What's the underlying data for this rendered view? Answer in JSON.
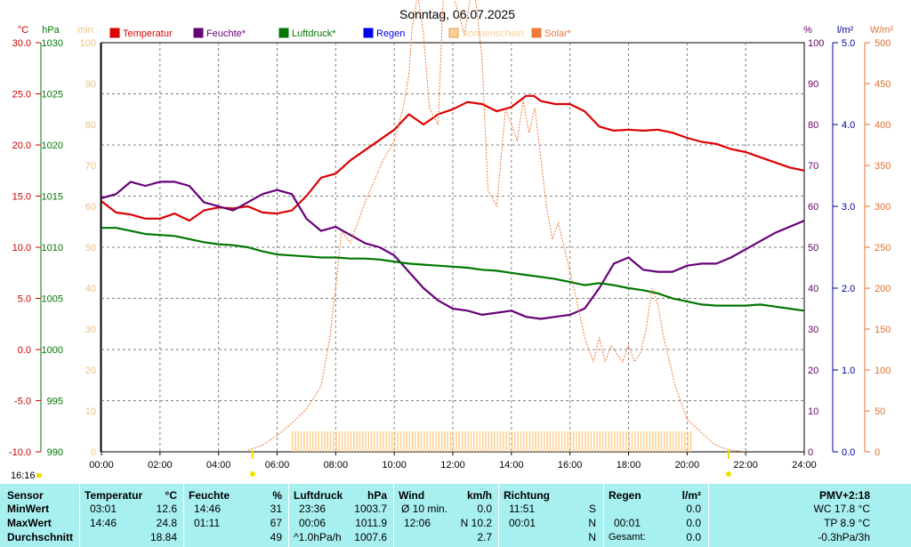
{
  "chart_data": {
    "type": "line",
    "title": "Sonntag, 06.07.2025",
    "x_ticks": [
      "00:00",
      "02:00",
      "04:00",
      "06:00",
      "08:00",
      "10:00",
      "12:00",
      "14:00",
      "16:00",
      "18:00",
      "20:00",
      "22:00",
      "24:00"
    ],
    "x_range_hours": [
      0,
      24
    ],
    "grid": true,
    "legend_position": "top",
    "sunrise_label": "16:16",
    "axes": {
      "temp": {
        "unit": "°C",
        "range": [
          -10,
          30
        ],
        "ticks": [
          "30.0",
          "25.0",
          "20.0",
          "15.0",
          "10.0",
          "5.0",
          "0.0",
          "-5.0",
          "-10.0"
        ],
        "color": "#cc0000"
      },
      "pressure": {
        "unit": "hPa",
        "range": [
          990,
          1030
        ],
        "ticks": [
          "1030",
          "1025",
          "1020",
          "1015",
          "1010",
          "1005",
          "1000",
          "995",
          "990"
        ],
        "color": "#007700"
      },
      "sunshine": {
        "unit": "min",
        "range": [
          0,
          100
        ],
        "ticks": [
          "100",
          "90",
          "80",
          "70",
          "60",
          "50",
          "40",
          "30",
          "20",
          "10",
          "0"
        ],
        "color": "#f0c080"
      },
      "humidity": {
        "unit": "%",
        "range": [
          0,
          100
        ],
        "ticks": [
          "100",
          "90",
          "80",
          "70",
          "60",
          "50",
          "40",
          "30",
          "20",
          "10",
          "0"
        ],
        "color": "#660066"
      },
      "rain": {
        "unit": "l/m²",
        "range": [
          0,
          5
        ],
        "ticks": [
          "5.0",
          "4.0",
          "3.0",
          "2.0",
          "1.0",
          "0.0"
        ],
        "color": "#000099"
      },
      "solar": {
        "unit": "W/m²",
        "range": [
          0,
          500
        ],
        "ticks": [
          "500",
          "450",
          "400",
          "350",
          "300",
          "250",
          "200",
          "150",
          "100",
          "50",
          "0"
        ],
        "color": "#e07030"
      }
    },
    "series": [
      {
        "name": "Temperatur",
        "color": "#dd0000",
        "axis": "temp",
        "x": [
          0,
          0.5,
          1,
          1.5,
          2,
          2.5,
          3,
          3.5,
          4,
          4.5,
          5,
          5.5,
          6,
          6.5,
          7,
          7.5,
          8,
          8.5,
          9,
          9.5,
          10,
          10.5,
          11,
          11.5,
          12,
          12.5,
          13,
          13.5,
          14,
          14.5,
          14.77,
          15,
          15.5,
          16,
          16.5,
          17,
          17.5,
          18,
          18.5,
          19,
          19.5,
          20,
          20.5,
          21,
          21.5,
          22,
          22.5,
          23,
          23.5,
          24
        ],
        "y": [
          14.5,
          13.4,
          13.2,
          12.8,
          12.8,
          13.3,
          12.6,
          13.6,
          13.9,
          13.8,
          14.0,
          13.4,
          13.3,
          13.6,
          15.0,
          16.8,
          17.2,
          18.5,
          19.5,
          20.5,
          21.5,
          23.0,
          22.0,
          23.0,
          23.5,
          24.2,
          24.0,
          23.3,
          23.7,
          24.8,
          24.8,
          24.3,
          24.0,
          24.0,
          23.3,
          21.8,
          21.4,
          21.5,
          21.4,
          21.5,
          21.2,
          20.7,
          20.3,
          20.1,
          19.6,
          19.3,
          18.8,
          18.3,
          17.8,
          17.5
        ]
      },
      {
        "name": "Feuchte*",
        "color": "#660077",
        "axis": "humidity",
        "x": [
          0,
          0.5,
          1,
          1.5,
          2,
          2.5,
          3,
          3.5,
          4,
          4.5,
          5,
          5.5,
          6,
          6.5,
          7,
          7.5,
          8,
          8.5,
          9,
          9.5,
          10,
          10.5,
          11,
          11.5,
          12,
          12.5,
          13,
          13.5,
          14,
          14.5,
          15,
          15.5,
          16,
          16.5,
          17,
          17.5,
          18,
          18.5,
          19,
          19.5,
          20,
          20.5,
          21,
          21.5,
          22,
          22.5,
          23,
          23.5,
          24
        ],
        "y": [
          62,
          63,
          66,
          65,
          66,
          66,
          65,
          61,
          60,
          59,
          61,
          63,
          64,
          63,
          57,
          54,
          55,
          53,
          51,
          50,
          48,
          44,
          40,
          37,
          35,
          34.5,
          33.5,
          34,
          34.5,
          33,
          32.5,
          33,
          33.5,
          35,
          40,
          46,
          47.5,
          44.5,
          44,
          44,
          45.5,
          46,
          46,
          47.5,
          49.5,
          51.5,
          53.5,
          55,
          56.5
        ]
      },
      {
        "name": "Luftdruck*",
        "color": "#007700",
        "axis": "pressure",
        "x": [
          0,
          0.5,
          1,
          1.5,
          2,
          2.5,
          3,
          3.5,
          4,
          4.5,
          5,
          5.5,
          6,
          6.5,
          7,
          7.5,
          8,
          8.5,
          9,
          9.5,
          10,
          10.5,
          11,
          11.5,
          12,
          12.5,
          13,
          13.5,
          14,
          14.5,
          15,
          15.5,
          16,
          16.5,
          17,
          17.5,
          18,
          18.5,
          19,
          19.5,
          20,
          20.5,
          21,
          21.5,
          22,
          22.5,
          23,
          23.5,
          24
        ],
        "y": [
          1011.9,
          1011.9,
          1011.6,
          1011.3,
          1011.2,
          1011.1,
          1010.8,
          1010.5,
          1010.3,
          1010.2,
          1010.0,
          1009.6,
          1009.3,
          1009.2,
          1009.1,
          1009.0,
          1009.0,
          1008.9,
          1008.9,
          1008.8,
          1008.6,
          1008.4,
          1008.3,
          1008.2,
          1008.1,
          1008.0,
          1007.8,
          1007.7,
          1007.5,
          1007.3,
          1007.1,
          1006.9,
          1006.6,
          1006.3,
          1006.5,
          1006.3,
          1006.0,
          1005.8,
          1005.5,
          1005.0,
          1004.7,
          1004.4,
          1004.3,
          1004.3,
          1004.3,
          1004.4,
          1004.2,
          1004.0,
          1003.8
        ]
      },
      {
        "name": "Regen",
        "color": "#0000ee",
        "axis": "rain",
        "x": [],
        "y": []
      },
      {
        "name": "Sonnenschein",
        "color": "#ffd090",
        "axis": "sunshine",
        "bar_start": 6.5,
        "bar_end": 20.15,
        "bar_step": 0.1,
        "bar_value": 5
      },
      {
        "name": "Solar*",
        "color": "#f07838",
        "axis": "solar",
        "x": [
          5,
          5.5,
          6,
          6.5,
          7,
          7.5,
          7.8,
          8,
          8.2,
          8.5,
          9,
          9.3,
          9.6,
          10,
          10.3,
          10.5,
          10.6,
          10.8,
          11,
          11.2,
          11.5,
          11.7,
          12,
          12.4,
          12.7,
          13,
          13.2,
          13.5,
          13.8,
          14,
          14.2,
          14.4,
          14.6,
          14.8,
          15,
          15.2,
          15.4,
          15.6,
          15.8,
          16,
          16.2,
          16.5,
          16.8,
          17,
          17.2,
          17.4,
          17.6,
          17.8,
          18,
          18.2,
          18.4,
          18.6,
          18.8,
          19,
          19.2,
          19.4,
          19.6,
          19.8,
          20,
          20.3,
          20.6,
          20.9,
          21.2,
          21.5,
          21.8,
          22
        ],
        "y": [
          2,
          8,
          20,
          35,
          52,
          80,
          140,
          200,
          270,
          255,
          305,
          330,
          355,
          380,
          420,
          460,
          515,
          560,
          510,
          420,
          400,
          580,
          560,
          510,
          580,
          480,
          320,
          300,
          420,
          400,
          380,
          430,
          390,
          420,
          360,
          300,
          260,
          280,
          250,
          220,
          190,
          140,
          110,
          140,
          110,
          130,
          120,
          110,
          130,
          110,
          120,
          150,
          200,
          180,
          140,
          110,
          80,
          60,
          40,
          30,
          20,
          10,
          5,
          2,
          1,
          0
        ]
      }
    ]
  },
  "stats": {
    "sensor": {
      "header": "Sensor",
      "rows": [
        "MinWert",
        "MaxWert",
        "Durchschnitt"
      ]
    },
    "temperatur": {
      "header": "Temperatur",
      "unit": "°C",
      "min_time": "03:01",
      "min": "12.6",
      "max_time": "14:46",
      "max": "24.8",
      "avg": "18.84"
    },
    "feuchte": {
      "header": "Feuchte",
      "unit": "%",
      "min_time": "14:46",
      "min": "31",
      "max_time": "01:11",
      "max": "67",
      "avg": "49"
    },
    "luftdruck": {
      "header": "Luftdruck",
      "unit": "hPa",
      "min_time": "23:36",
      "min": "1003.7",
      "max_time": "00:06",
      "max": "1011.9",
      "avg_label": "^1.0hPa/h",
      "avg": "1007.6"
    },
    "wind": {
      "header": "Wind",
      "unit": "km/h",
      "min_label": "Ø 10 min.",
      "min": "0.0",
      "max_time": "12:06",
      "max": "N 10.2",
      "avg": "2.7"
    },
    "richtung": {
      "header": "Richtung",
      "min_time": "11:51",
      "min": "S",
      "max_time": "00:01",
      "max": "N",
      "avg": "N"
    },
    "regen": {
      "header": "Regen",
      "unit": "l/m²",
      "min": "0.0",
      "max_time": "00:01",
      "max": "0.0",
      "avg_label": "Gesamt:",
      "avg": "0.0"
    },
    "pmv": {
      "header": "PMV+2:18",
      "wc": "WC 17.8 °C",
      "tp": "TP 8.9 °C",
      "trend": "-0.3hPa/3h"
    }
  }
}
